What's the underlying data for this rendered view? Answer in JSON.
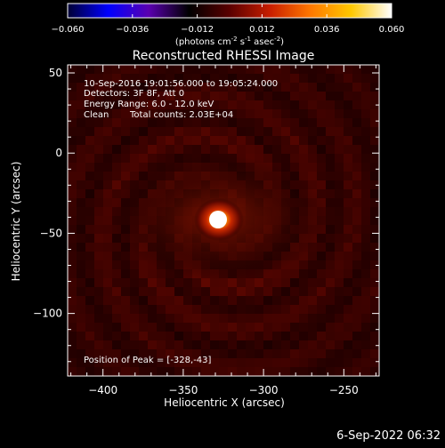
{
  "colorbar": {
    "ticks": [
      "-0.060",
      "-0.036",
      "-0.012",
      "0.012",
      "0.036",
      "0.060"
    ],
    "tick_values": [
      -0.06,
      -0.036,
      -0.012,
      0.012,
      0.036,
      0.06
    ],
    "range": [
      -0.06,
      0.06
    ],
    "colormap": [
      "#000033",
      "#0000ff",
      "#5a00b0",
      "#000000",
      "#5a0000",
      "#c81e00",
      "#ff7800",
      "#ffc800",
      "#ffffff"
    ],
    "units_prefix": "(photons cm",
    "units_exp1": "-2",
    "units_mid": " s",
    "units_exp2": "-1",
    "units_mid2": " asec",
    "units_exp3": "-2",
    "units_suffix": ")"
  },
  "chart_data": {
    "type": "heatmap",
    "title": "Reconstructed RHESSI Image",
    "xlabel": "Heliocentric X (arcsec)",
    "ylabel": "Heliocentric Y (arcsec)",
    "xlim": [
      -422,
      -228
    ],
    "ylim": [
      -139,
      55
    ],
    "xticks": [
      -400,
      -350,
      -300,
      -250
    ],
    "yticks": [
      50,
      0,
      -50,
      -100
    ],
    "xtick_labels": [
      "−400",
      "−350",
      "−300",
      "−250"
    ],
    "ytick_labels": [
      "50",
      "0",
      "−50",
      "−100"
    ],
    "peak": {
      "x": -328,
      "y": -43,
      "value": 0.06
    },
    "annotations": {
      "time": "10-Sep-2016 19:01:56.000 to 19:05:24.000",
      "detectors": "Detectors: 3F 8F, Att 0",
      "energy": "Energy Range: 6.0 - 12.0 keV",
      "clean": "Clean",
      "counts": "Total counts: 2.03E+04",
      "peak_position": "Position of Peak = [-328,-43]"
    }
  },
  "footer": {
    "timestamp": "6-Sep-2022 06:32"
  }
}
